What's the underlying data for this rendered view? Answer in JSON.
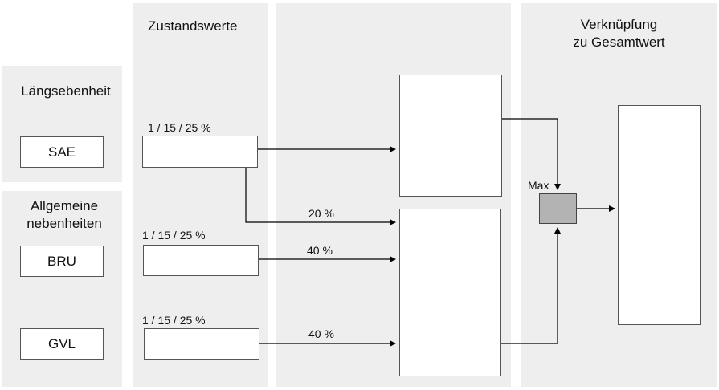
{
  "columns": {
    "zustandswerte_title": "Zustandswerte",
    "verknuepfung_title_line1": "Verknüpfung",
    "verknuepfung_title_line2": "zu Gesamtwert"
  },
  "groups": {
    "laengsebenheit": "Längsebenheit",
    "allgemeine_line1": "Allgemeine",
    "allgemeine_line2": "nebenheiten"
  },
  "indicators": [
    {
      "label": "SAE",
      "thresholds": "1 / 15 / 25 %"
    },
    {
      "label": "BRU",
      "thresholds": "1 / 15 / 25 %"
    },
    {
      "label": "GVL",
      "thresholds": "1 / 15 / 25 %"
    }
  ],
  "weights": {
    "sae_to_lower": "20 %",
    "bru": "40 %",
    "gvl": "40 %"
  },
  "max_label": "Max",
  "colors": {
    "panel": "#eeeeee",
    "max_box": "#b3b3b3",
    "arrow": "#000000"
  }
}
